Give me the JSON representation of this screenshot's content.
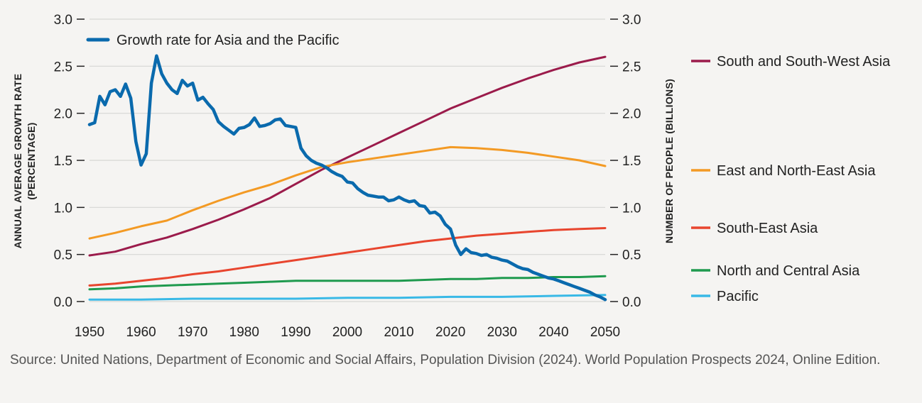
{
  "source": "Source: United Nations, Department of Economic and Social Affairs, Population Division (2024). World Population Prospects 2024, Online Edition.",
  "chart_data": {
    "type": "line",
    "title": "",
    "x_label": "",
    "x_ticks": [
      "1950",
      "1960",
      "1970",
      "1980",
      "1990",
      "2000",
      "2010",
      "2020",
      "2030",
      "2040",
      "2050"
    ],
    "xlim": [
      1950,
      2050
    ],
    "grid": true,
    "left_axis": {
      "label_line1": "ANNUAL AVERAGE GROWTH RATE",
      "label_line2": "(PERCENTAGE)",
      "ticks": [
        "3.0",
        "2.5",
        "2.0",
        "1.5",
        "1.0",
        "0.5",
        "0.0"
      ],
      "ylim": [
        0,
        3.0
      ]
    },
    "right_axis": {
      "label": "NUMBER OF PEOPLE (BILLIONS)",
      "ticks": [
        "3.0",
        "2.5",
        "2.0",
        "1.5",
        "1.0",
        "0.5",
        "0.0"
      ],
      "ylim": [
        0,
        3.0
      ]
    },
    "legend_inside": "Growth rate for Asia and the Pacific",
    "series": [
      {
        "name": "Growth rate for Asia and the Pacific",
        "axis": "left",
        "color": "#0a6aad",
        "width": 4.5,
        "points": [
          [
            1950,
            1.88
          ],
          [
            1951,
            1.9
          ],
          [
            1952,
            2.18
          ],
          [
            1953,
            2.09
          ],
          [
            1954,
            2.23
          ],
          [
            1955,
            2.25
          ],
          [
            1956,
            2.18
          ],
          [
            1957,
            2.31
          ],
          [
            1958,
            2.16
          ],
          [
            1959,
            1.7
          ],
          [
            1960,
            1.45
          ],
          [
            1961,
            1.57
          ],
          [
            1962,
            2.32
          ],
          [
            1963,
            2.61
          ],
          [
            1964,
            2.42
          ],
          [
            1965,
            2.32
          ],
          [
            1966,
            2.25
          ],
          [
            1967,
            2.21
          ],
          [
            1968,
            2.35
          ],
          [
            1969,
            2.29
          ],
          [
            1970,
            2.32
          ],
          [
            1971,
            2.14
          ],
          [
            1972,
            2.17
          ],
          [
            1973,
            2.1
          ],
          [
            1974,
            2.04
          ],
          [
            1975,
            1.91
          ],
          [
            1976,
            1.86
          ],
          [
            1977,
            1.82
          ],
          [
            1978,
            1.78
          ],
          [
            1979,
            1.84
          ],
          [
            1980,
            1.85
          ],
          [
            1981,
            1.88
          ],
          [
            1982,
            1.95
          ],
          [
            1983,
            1.86
          ],
          [
            1984,
            1.87
          ],
          [
            1985,
            1.89
          ],
          [
            1986,
            1.93
          ],
          [
            1987,
            1.94
          ],
          [
            1988,
            1.87
          ],
          [
            1989,
            1.86
          ],
          [
            1990,
            1.85
          ],
          [
            1991,
            1.63
          ],
          [
            1992,
            1.55
          ],
          [
            1993,
            1.5
          ],
          [
            1994,
            1.47
          ],
          [
            1995,
            1.45
          ],
          [
            1996,
            1.42
          ],
          [
            1997,
            1.38
          ],
          [
            1998,
            1.35
          ],
          [
            1999,
            1.33
          ],
          [
            2000,
            1.27
          ],
          [
            2001,
            1.26
          ],
          [
            2002,
            1.2
          ],
          [
            2003,
            1.16
          ],
          [
            2004,
            1.13
          ],
          [
            2005,
            1.12
          ],
          [
            2006,
            1.11
          ],
          [
            2007,
            1.11
          ],
          [
            2008,
            1.07
          ],
          [
            2009,
            1.08
          ],
          [
            2010,
            1.11
          ],
          [
            2011,
            1.08
          ],
          [
            2012,
            1.06
          ],
          [
            2013,
            1.07
          ],
          [
            2014,
            1.02
          ],
          [
            2015,
            1.01
          ],
          [
            2016,
            0.94
          ],
          [
            2017,
            0.95
          ],
          [
            2018,
            0.91
          ],
          [
            2019,
            0.82
          ],
          [
            2020,
            0.77
          ],
          [
            2021,
            0.6
          ],
          [
            2022,
            0.5
          ],
          [
            2023,
            0.56
          ],
          [
            2024,
            0.52
          ],
          [
            2025,
            0.51
          ],
          [
            2026,
            0.49
          ],
          [
            2027,
            0.5
          ],
          [
            2028,
            0.47
          ],
          [
            2029,
            0.46
          ],
          [
            2030,
            0.44
          ],
          [
            2031,
            0.43
          ],
          [
            2032,
            0.4
          ],
          [
            2033,
            0.37
          ],
          [
            2034,
            0.35
          ],
          [
            2035,
            0.34
          ],
          [
            2036,
            0.31
          ],
          [
            2037,
            0.29
          ],
          [
            2038,
            0.27
          ],
          [
            2039,
            0.25
          ],
          [
            2040,
            0.24
          ],
          [
            2041,
            0.22
          ],
          [
            2042,
            0.2
          ],
          [
            2043,
            0.18
          ],
          [
            2044,
            0.16
          ],
          [
            2045,
            0.14
          ],
          [
            2046,
            0.12
          ],
          [
            2047,
            0.1
          ],
          [
            2048,
            0.07
          ],
          [
            2049,
            0.05
          ],
          [
            2050,
            0.02
          ]
        ]
      },
      {
        "name": "South and South-West Asia",
        "axis": "right",
        "color": "#9b1b4b",
        "width": 3,
        "points": [
          [
            1950,
            0.49
          ],
          [
            1955,
            0.53
          ],
          [
            1960,
            0.61
          ],
          [
            1965,
            0.68
          ],
          [
            1970,
            0.77
          ],
          [
            1975,
            0.87
          ],
          [
            1980,
            0.98
          ],
          [
            1985,
            1.1
          ],
          [
            1990,
            1.25
          ],
          [
            1995,
            1.4
          ],
          [
            2000,
            1.53
          ],
          [
            2005,
            1.66
          ],
          [
            2010,
            1.79
          ],
          [
            2015,
            1.92
          ],
          [
            2020,
            2.05
          ],
          [
            2025,
            2.16
          ],
          [
            2030,
            2.27
          ],
          [
            2035,
            2.37
          ],
          [
            2040,
            2.46
          ],
          [
            2045,
            2.54
          ],
          [
            2050,
            2.6
          ]
        ]
      },
      {
        "name": "East and North-East Asia",
        "axis": "right",
        "color": "#f39a24",
        "width": 3,
        "points": [
          [
            1950,
            0.67
          ],
          [
            1955,
            0.73
          ],
          [
            1960,
            0.8
          ],
          [
            1965,
            0.86
          ],
          [
            1970,
            0.97
          ],
          [
            1975,
            1.07
          ],
          [
            1980,
            1.16
          ],
          [
            1985,
            1.24
          ],
          [
            1990,
            1.34
          ],
          [
            1995,
            1.43
          ],
          [
            2000,
            1.48
          ],
          [
            2005,
            1.52
          ],
          [
            2010,
            1.56
          ],
          [
            2015,
            1.6
          ],
          [
            2020,
            1.64
          ],
          [
            2025,
            1.63
          ],
          [
            2030,
            1.61
          ],
          [
            2035,
            1.58
          ],
          [
            2040,
            1.54
          ],
          [
            2045,
            1.5
          ],
          [
            2050,
            1.44
          ]
        ]
      },
      {
        "name": "South-East Asia",
        "axis": "right",
        "color": "#e8452e",
        "width": 3,
        "points": [
          [
            1950,
            0.17
          ],
          [
            1955,
            0.19
          ],
          [
            1960,
            0.22
          ],
          [
            1965,
            0.25
          ],
          [
            1970,
            0.29
          ],
          [
            1975,
            0.32
          ],
          [
            1980,
            0.36
          ],
          [
            1985,
            0.4
          ],
          [
            1990,
            0.44
          ],
          [
            1995,
            0.48
          ],
          [
            2000,
            0.52
          ],
          [
            2005,
            0.56
          ],
          [
            2010,
            0.6
          ],
          [
            2015,
            0.64
          ],
          [
            2020,
            0.67
          ],
          [
            2025,
            0.7
          ],
          [
            2030,
            0.72
          ],
          [
            2035,
            0.74
          ],
          [
            2040,
            0.76
          ],
          [
            2045,
            0.77
          ],
          [
            2050,
            0.78
          ]
        ]
      },
      {
        "name": "North and Central Asia",
        "axis": "right",
        "color": "#1f9a4e",
        "width": 3,
        "points": [
          [
            1950,
            0.13
          ],
          [
            1955,
            0.14
          ],
          [
            1960,
            0.16
          ],
          [
            1965,
            0.17
          ],
          [
            1970,
            0.18
          ],
          [
            1975,
            0.19
          ],
          [
            1980,
            0.2
          ],
          [
            1985,
            0.21
          ],
          [
            1990,
            0.22
          ],
          [
            1995,
            0.22
          ],
          [
            2000,
            0.22
          ],
          [
            2005,
            0.22
          ],
          [
            2010,
            0.22
          ],
          [
            2015,
            0.23
          ],
          [
            2020,
            0.24
          ],
          [
            2025,
            0.24
          ],
          [
            2030,
            0.25
          ],
          [
            2035,
            0.25
          ],
          [
            2040,
            0.26
          ],
          [
            2045,
            0.26
          ],
          [
            2050,
            0.27
          ]
        ]
      },
      {
        "name": "Pacific",
        "axis": "right",
        "color": "#39b9e6",
        "width": 3,
        "points": [
          [
            1950,
            0.02
          ],
          [
            1960,
            0.02
          ],
          [
            1970,
            0.03
          ],
          [
            1980,
            0.03
          ],
          [
            1990,
            0.03
          ],
          [
            2000,
            0.04
          ],
          [
            2010,
            0.04
          ],
          [
            2020,
            0.05
          ],
          [
            2030,
            0.05
          ],
          [
            2040,
            0.06
          ],
          [
            2050,
            0.07
          ]
        ]
      }
    ],
    "right_legend": [
      {
        "label": "South and South-West Asia",
        "color": "#9b1b4b"
      },
      {
        "label": "East and North-East Asia",
        "color": "#f39a24"
      },
      {
        "label": "South-East Asia",
        "color": "#e8452e"
      },
      {
        "label": "North and Central Asia",
        "color": "#1f9a4e"
      },
      {
        "label": "Pacific",
        "color": "#39b9e6"
      }
    ]
  }
}
